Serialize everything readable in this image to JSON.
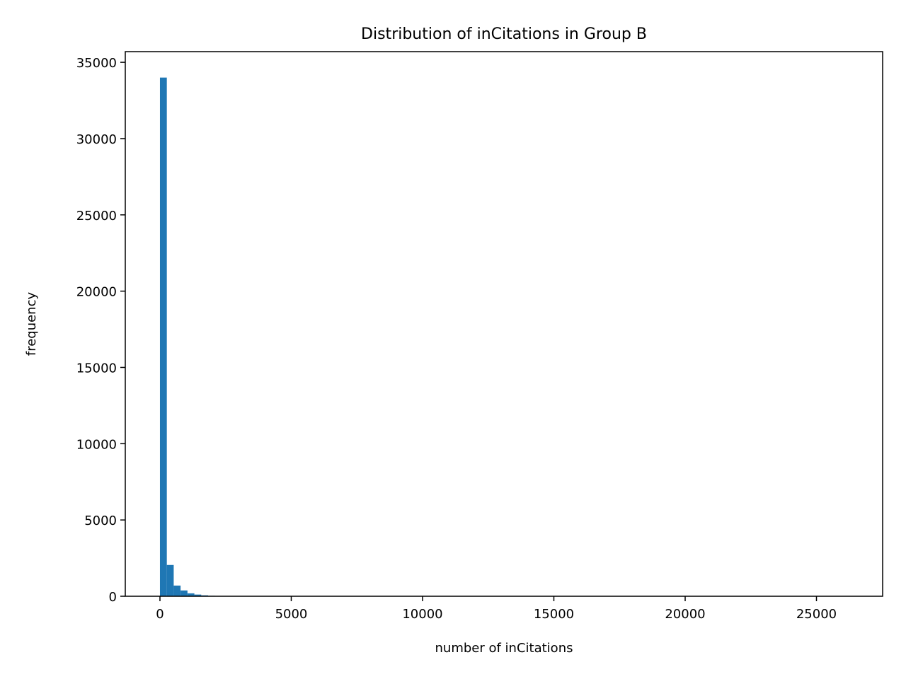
{
  "chart_data": {
    "type": "bar",
    "subtype": "histogram",
    "title": "Distribution of inCitations in Group B",
    "xlabel": "number of inCitations",
    "ylabel": "frequency",
    "xlim": [
      -1320,
      27520
    ],
    "ylim": [
      0,
      35700
    ],
    "xticks": [
      0,
      5000,
      10000,
      15000,
      20000,
      25000
    ],
    "yticks": [
      0,
      5000,
      10000,
      15000,
      20000,
      25000,
      30000,
      35000
    ],
    "bin_width": 262,
    "bins": [
      {
        "x0": 0,
        "x1": 262,
        "count": 34000
      },
      {
        "x0": 262,
        "x1": 524,
        "count": 2050
      },
      {
        "x0": 524,
        "x1": 786,
        "count": 700
      },
      {
        "x0": 786,
        "x1": 1048,
        "count": 380
      },
      {
        "x0": 1048,
        "x1": 1310,
        "count": 190
      },
      {
        "x0": 1310,
        "x1": 1572,
        "count": 110
      },
      {
        "x0": 1572,
        "x1": 1834,
        "count": 60
      },
      {
        "x0": 1834,
        "x1": 2096,
        "count": 30
      },
      {
        "x0": 2096,
        "x1": 2358,
        "count": 15
      },
      {
        "x0": 2358,
        "x1": 2620,
        "count": 8
      }
    ],
    "x_max": 26200,
    "grid": false,
    "bar_color": "#1f77b4"
  }
}
